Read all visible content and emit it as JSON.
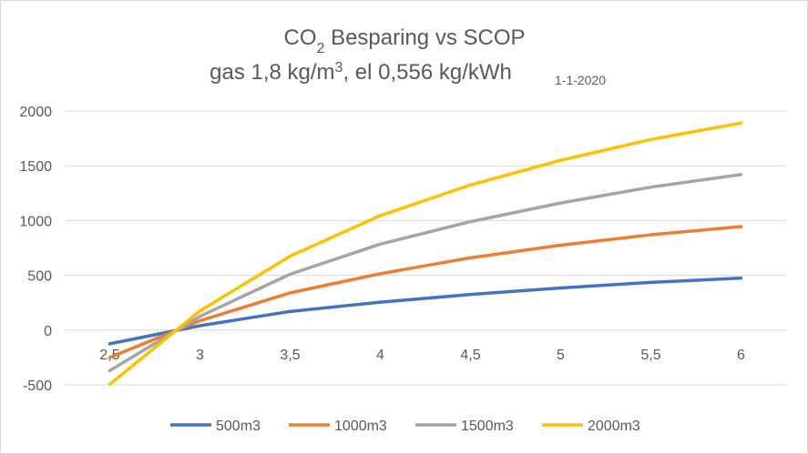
{
  "chart_data": {
    "type": "line",
    "title": {
      "line1_pre": "CO",
      "line1_sub": "2",
      "line1_post": " Besparing vs SCOP",
      "line2_pre": "gas 1,8 kg/m",
      "line2_sup": "3",
      "line2_post": ", el 0,556 kg/kWh",
      "date": "1-1-2020"
    },
    "x": [
      2.5,
      3,
      3.5,
      4,
      4.5,
      5,
      5.5,
      6
    ],
    "x_tick_labels": [
      "2,5",
      "3",
      "3,5",
      "4",
      "4,5",
      "5",
      "5,5",
      "6"
    ],
    "ylim": [
      -500,
      2000
    ],
    "y_ticks": [
      2000,
      1500,
      1000,
      500,
      0,
      -500
    ],
    "y_tick_labels": [
      "2000",
      "1500",
      "1000",
      "500",
      "0",
      "-500"
    ],
    "grid": true,
    "legend_position": "bottom",
    "series": [
      {
        "name": "500m3",
        "color": "#4472c4",
        "values": [
          -125,
          40,
          170,
          255,
          325,
          385,
          435,
          475
        ]
      },
      {
        "name": "1000m3",
        "color": "#ed7d31",
        "values": [
          -250,
          85,
          340,
          515,
          660,
          775,
          870,
          945
        ]
      },
      {
        "name": "1500m3",
        "color": "#a5a5a5",
        "values": [
          -370,
          125,
          510,
          785,
          990,
          1160,
          1305,
          1420
        ]
      },
      {
        "name": "2000m3",
        "color": "#ffc000",
        "values": [
          -495,
          175,
          675,
          1045,
          1325,
          1550,
          1740,
          1890
        ]
      }
    ]
  }
}
